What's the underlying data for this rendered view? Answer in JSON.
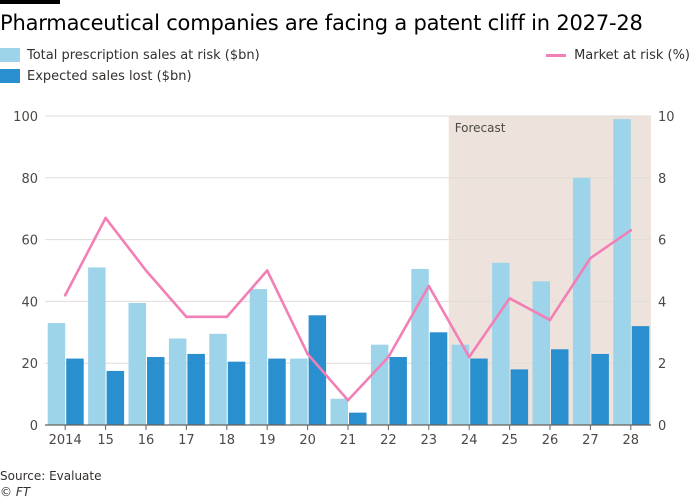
{
  "title": "Pharmaceutical companies are facing a patent cliff in 2027-28",
  "legend": {
    "total": "Total prescription sales at risk ($bn)",
    "lost": "Expected sales lost ($bn)",
    "market": "Market at risk (%)"
  },
  "footer": {
    "source": "Source: Evaluate",
    "copyright": "© FT"
  },
  "colors": {
    "total": "#9ed4e9",
    "lost": "#2a8fcf",
    "market": "#f27fb5",
    "forecast_bg": "#ede3dc",
    "grid": "#e0dcd8",
    "axis": "#66605c",
    "tick_text": "#4d4845"
  },
  "chart_data": {
    "type": "bar",
    "categories": [
      "2014",
      "15",
      "16",
      "17",
      "18",
      "19",
      "20",
      "21",
      "22",
      "23",
      "24",
      "25",
      "26",
      "27",
      "28"
    ],
    "series": [
      {
        "name": "Total prescription sales at risk ($bn)",
        "axis": "left",
        "values": [
          33,
          51,
          39.5,
          28,
          29.5,
          44,
          21.5,
          8.5,
          26,
          50.5,
          26,
          52.5,
          46.5,
          80,
          99
        ]
      },
      {
        "name": "Expected sales lost ($bn)",
        "axis": "left",
        "values": [
          21.5,
          17.5,
          22,
          23,
          20.5,
          21.5,
          35.5,
          4,
          22,
          30,
          21.5,
          18,
          24.5,
          23,
          32
        ]
      },
      {
        "name": "Market at risk (%)",
        "type": "line",
        "axis": "right",
        "values": [
          4.2,
          6.7,
          5.0,
          3.5,
          3.5,
          5.0,
          2.3,
          0.8,
          2.2,
          4.5,
          2.2,
          4.1,
          3.4,
          5.4,
          6.3
        ]
      }
    ],
    "ylim_left": [
      0,
      100
    ],
    "yticks_left": [
      0,
      20,
      40,
      60,
      80,
      100
    ],
    "ylim_right": [
      0,
      10
    ],
    "yticks_right": [
      0,
      2,
      4,
      6,
      8,
      10
    ],
    "forecast": {
      "label": "Forecast",
      "start_category": "24",
      "end_category": "28"
    },
    "xlabel": "",
    "ylabel": "",
    "grid": true
  }
}
